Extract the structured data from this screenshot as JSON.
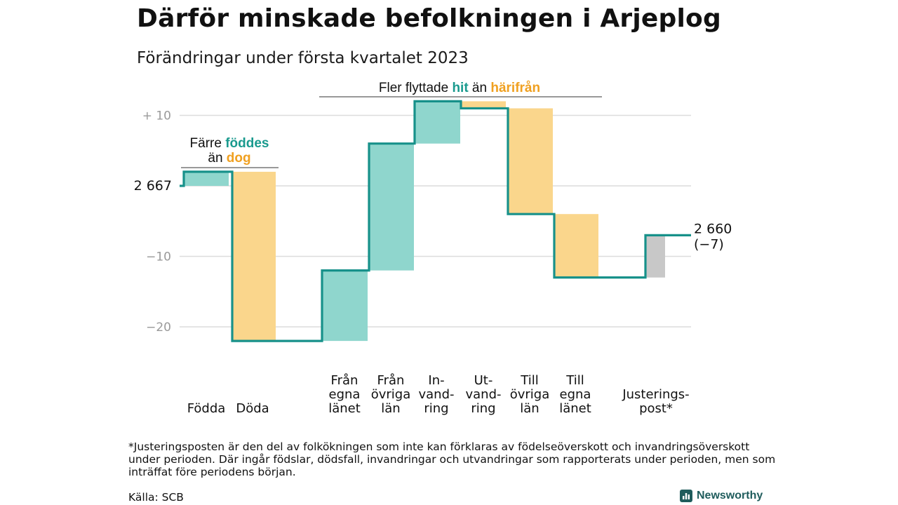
{
  "header": {
    "title": "Därför minskade befolkningen i Arjeplog",
    "subtitle": "Förändringar under första kvartalet 2023"
  },
  "chart_data": {
    "type": "waterfall",
    "start": {
      "label": "2 667",
      "value": 2667
    },
    "end": {
      "label": "2 660",
      "change_label": "(−7)",
      "value": 2660
    },
    "y_ticks": [
      {
        "label": "+ 10",
        "value": 10
      },
      {
        "label": "−10",
        "value": -10
      },
      {
        "label": "−20",
        "value": -20
      }
    ],
    "ylim": [
      -24,
      12
    ],
    "steps": [
      {
        "label_lines": [
          "Födda"
        ],
        "value": 2,
        "kind": "hit"
      },
      {
        "label_lines": [
          "Döda"
        ],
        "value": -24,
        "kind": "harifran"
      },
      {
        "label_lines": [
          "Från",
          "egna",
          "länet"
        ],
        "value": 10,
        "kind": "hit"
      },
      {
        "label_lines": [
          "Från",
          "övriga",
          "län"
        ],
        "value": 18,
        "kind": "hit"
      },
      {
        "label_lines": [
          "In-",
          "vand-",
          "ring"
        ],
        "value": 6,
        "kind": "hit"
      },
      {
        "label_lines": [
          "Ut-",
          "vand-",
          "ring"
        ],
        "value": -1,
        "kind": "harifran"
      },
      {
        "label_lines": [
          "Till",
          "övriga",
          "län"
        ],
        "value": -15,
        "kind": "harifran"
      },
      {
        "label_lines": [
          "Till",
          "egna",
          "länet"
        ],
        "value": -9,
        "kind": "harifran"
      },
      {
        "label_lines": [
          "Justerings-",
          "post*"
        ],
        "value": 6,
        "kind": "justering"
      }
    ],
    "annotations": [
      {
        "group": "births",
        "text_parts": [
          {
            "text": "Färre ",
            "style": "plain"
          },
          {
            "text": "föddes",
            "style": "hit"
          },
          {
            "text": "än ",
            "style": "plain",
            "newline": true
          },
          {
            "text": "dog",
            "style": "harifran"
          }
        ]
      },
      {
        "group": "migration",
        "text_parts": [
          {
            "text": "Fler flyttade ",
            "style": "plain"
          },
          {
            "text": "hit",
            "style": "hit"
          },
          {
            "text": " än ",
            "style": "plain"
          },
          {
            "text": "härifrån",
            "style": "harifran"
          }
        ]
      }
    ],
    "colors": {
      "hit_bar": "#8fd6cd",
      "harifran_bar": "#fad68c",
      "justering_bar": "#c8c8c8",
      "line": "#17918a",
      "hit_text": "#1a9a8e",
      "harifran_text": "#f0a020",
      "grid": "#dcdcdc",
      "tick_text": "#9a9a9a"
    }
  },
  "footnote": "*Justeringsposten är den del av folkökningen som inte kan förklaras av födelseöverskott och invandringsöverskott under perioden. Där ingår födslar, dödsfall, invandringar och utvandringar som rapporterats under perioden, men som inträffat före periodens början.",
  "source": "Källa: SCB",
  "brand": {
    "name": "Newsworthy",
    "icon": "newsworthy-chart-logo-icon"
  }
}
